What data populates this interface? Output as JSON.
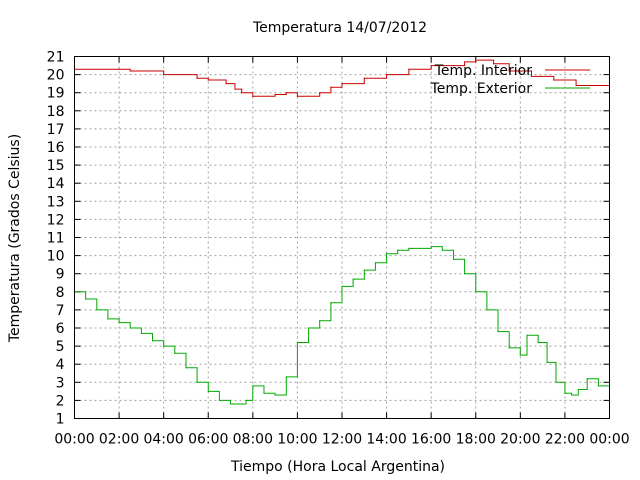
{
  "chart_data": {
    "type": "line",
    "title": "Temperatura 14/07/2012",
    "xlabel": "Tiempo (Hora Local Argentina)",
    "ylabel": "Temperatura (Grados Celsius)",
    "xlim": [
      0,
      24
    ],
    "ylim": [
      1,
      21
    ],
    "x_ticks": [
      "00:00",
      "02:00",
      "04:00",
      "06:00",
      "08:00",
      "10:00",
      "12:00",
      "14:00",
      "16:00",
      "18:00",
      "20:00",
      "22:00",
      "00:00"
    ],
    "y_ticks": [
      1,
      2,
      3,
      4,
      5,
      6,
      7,
      8,
      9,
      10,
      11,
      12,
      13,
      14,
      15,
      16,
      17,
      18,
      19,
      20,
      21
    ],
    "grid": true,
    "legend_position": "top-right",
    "series": [
      {
        "name": "Temp. Interior",
        "color": "#cc0000",
        "x": [
          0,
          2,
          2.5,
          4,
          5.5,
          6,
          6.8,
          7.2,
          7.5,
          8,
          9,
          9.5,
          10,
          11,
          11.5,
          12,
          13,
          14,
          15,
          16,
          17,
          17.5,
          18,
          18.8,
          19.5,
          20.5,
          21.5,
          22.5,
          24
        ],
        "values": [
          20.3,
          20.3,
          20.2,
          20.0,
          19.8,
          19.7,
          19.5,
          19.2,
          19.0,
          18.8,
          18.9,
          19.0,
          18.8,
          19.0,
          19.3,
          19.5,
          19.8,
          20.0,
          20.3,
          20.5,
          20.5,
          20.7,
          20.8,
          20.6,
          20.2,
          19.9,
          19.7,
          19.4,
          19.4
        ]
      },
      {
        "name": "Temp. Exterior",
        "color": "#00aa00",
        "x": [
          0,
          0.5,
          1,
          1.5,
          2,
          2.5,
          3,
          3.5,
          4,
          4.5,
          5,
          5.5,
          6,
          6.5,
          7,
          7.4,
          7.7,
          8,
          8.5,
          9,
          9.5,
          10,
          10.5,
          11,
          11.5,
          12,
          12.5,
          13,
          13.5,
          14,
          14.5,
          15,
          15.5,
          16,
          16.5,
          17,
          17.5,
          18,
          18.5,
          19,
          19.5,
          20,
          20.3,
          20.8,
          21.2,
          21.6,
          22,
          22.3,
          22.6,
          23,
          23.5,
          24
        ],
        "values": [
          8.0,
          7.6,
          7.0,
          6.5,
          6.3,
          6.0,
          5.7,
          5.3,
          5.0,
          4.6,
          3.8,
          3.0,
          2.5,
          2.0,
          1.8,
          1.8,
          2.0,
          2.8,
          2.4,
          2.3,
          3.3,
          5.2,
          6.0,
          6.4,
          7.4,
          8.3,
          8.7,
          9.2,
          9.6,
          10.1,
          10.3,
          10.4,
          10.4,
          10.5,
          10.3,
          9.8,
          9.0,
          8.0,
          7.0,
          5.8,
          4.9,
          4.5,
          5.6,
          5.2,
          4.1,
          3.0,
          2.4,
          2.3,
          2.6,
          3.2,
          2.8,
          2.2
        ]
      }
    ]
  }
}
